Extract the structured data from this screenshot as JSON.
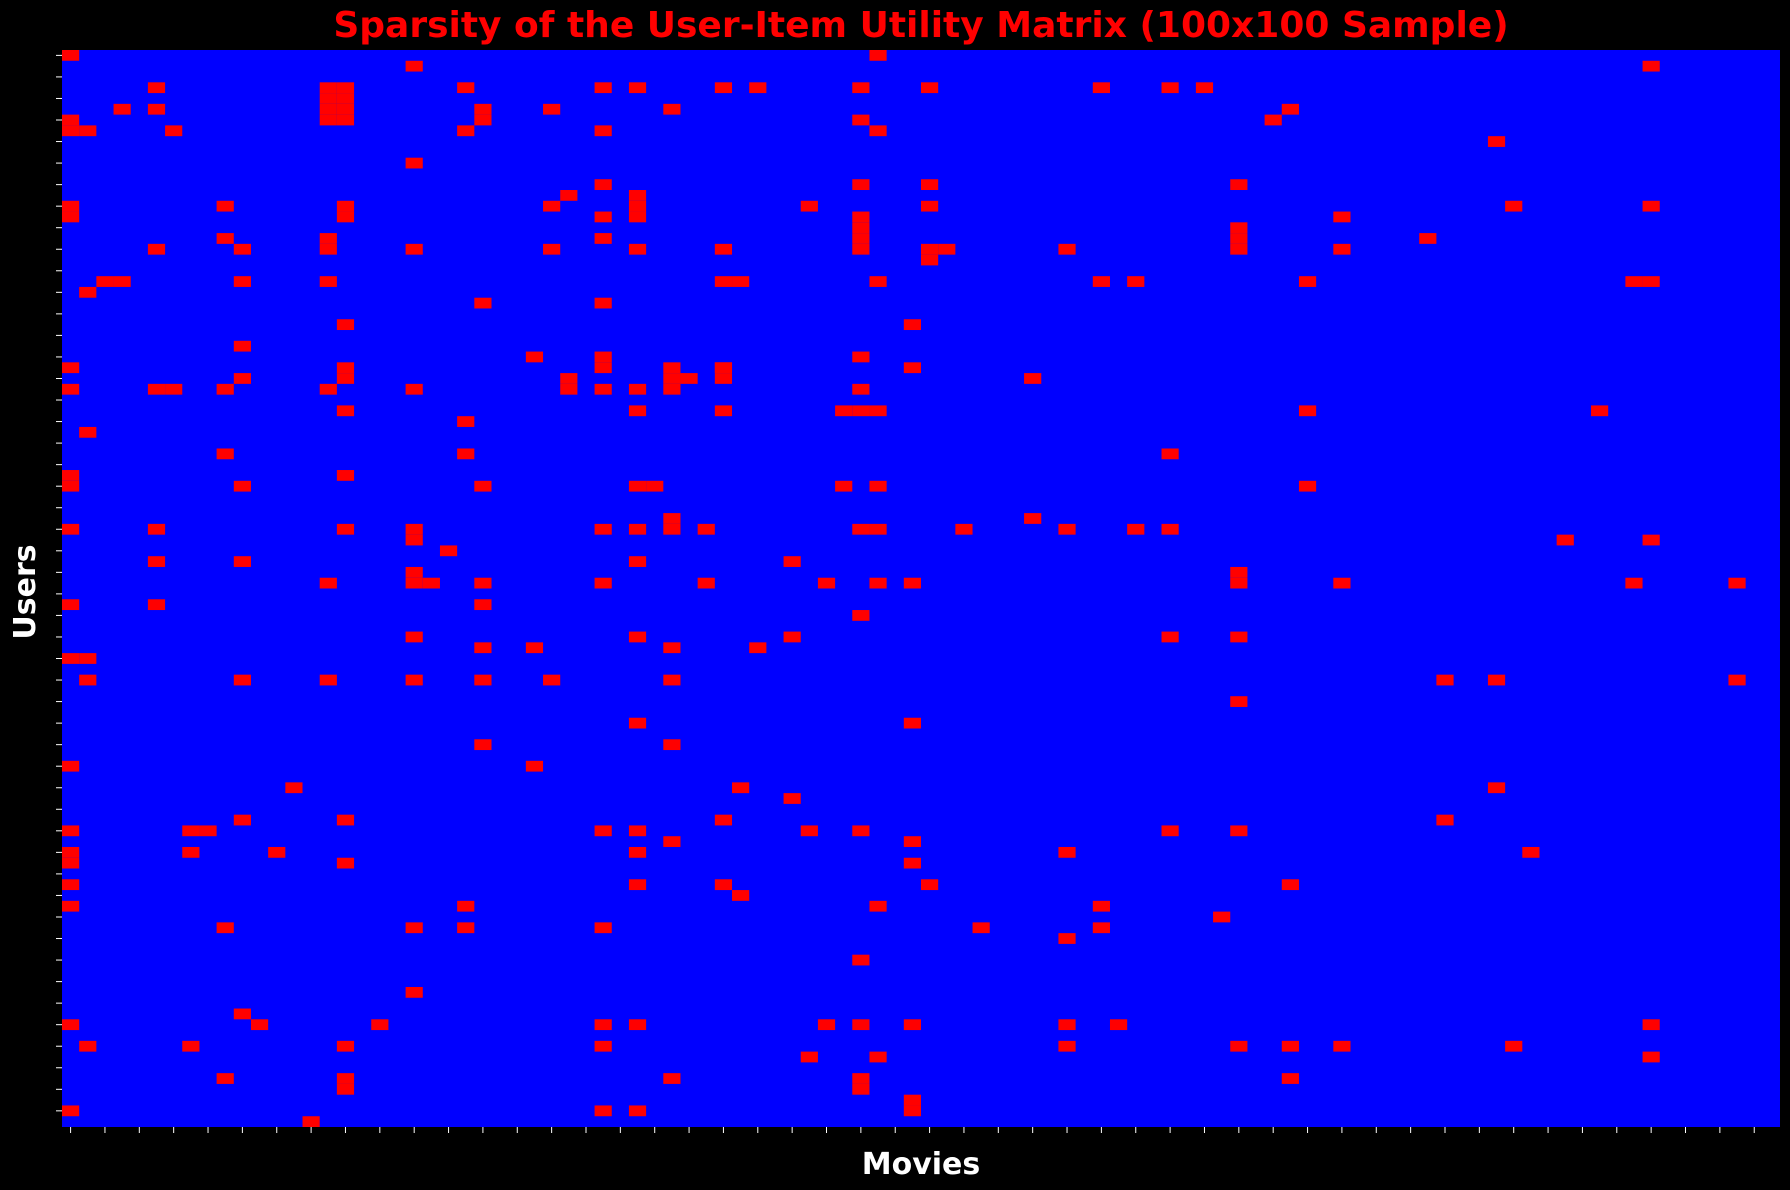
{
  "colors": {
    "background": "#000000",
    "empty_cell": "#0000ff",
    "rated_cell": "#ff0000",
    "title": "#ff0000",
    "axis_label": "#ffffff",
    "tick": "#ffffff"
  },
  "chart_data": {
    "type": "heatmap",
    "title": "Sparsity of the User-Item Utility Matrix (100x100 Sample)",
    "xlabel": "Movies",
    "ylabel": "Users",
    "n_rows": 100,
    "n_cols": 100,
    "colorbar": false,
    "tick_labels_shown": false,
    "value_encoding": "1 = rating present (red), 0 = no rating (blue)",
    "rated_cells_by_row": [
      [
        0,
        47
      ],
      [
        20,
        92
      ],
      [],
      [
        5,
        15,
        16,
        23,
        31,
        33,
        38,
        40,
        46,
        50,
        60,
        64,
        66
      ],
      [
        15,
        16
      ],
      [
        5,
        3,
        15,
        16,
        24,
        28,
        35,
        71
      ],
      [
        0,
        15,
        16,
        24,
        46,
        70
      ],
      [
        0,
        1,
        6,
        23,
        31,
        47
      ],
      [
        83
      ],
      [],
      [
        20
      ],
      [],
      [
        31,
        46,
        50,
        68
      ],
      [
        29,
        33
      ],
      [
        0,
        9,
        16,
        28,
        33,
        43,
        50,
        84,
        92
      ],
      [
        0,
        16,
        31,
        33,
        46,
        74
      ],
      [
        46,
        68
      ],
      [
        9,
        15,
        31,
        46,
        68,
        79
      ],
      [
        5,
        10,
        15,
        20,
        28,
        33,
        38,
        46,
        50,
        51,
        58,
        68,
        74
      ],
      [
        50
      ],
      [],
      [
        2,
        3,
        10,
        15,
        38,
        39,
        47,
        60,
        62,
        72,
        91,
        92
      ],
      [
        1
      ],
      [
        24,
        31
      ],
      [],
      [
        16,
        49
      ],
      [],
      [
        10
      ],
      [
        27,
        31,
        46
      ],
      [
        0,
        16,
        31,
        49,
        35,
        38,
        38
      ],
      [
        10,
        16,
        29,
        36,
        35,
        38,
        56
      ],
      [
        0,
        5,
        6,
        9,
        15,
        20,
        29,
        31,
        33,
        35,
        46
      ],
      [],
      [
        16,
        33,
        38,
        45,
        46,
        47,
        72,
        89
      ],
      [
        23
      ],
      [
        1
      ],
      [],
      [
        9,
        23,
        64
      ],
      [],
      [
        0,
        16
      ],
      [
        0,
        10,
        24,
        33,
        34,
        45,
        47,
        72
      ],
      [],
      [],
      [
        35,
        56
      ],
      [
        0,
        5,
        16,
        20,
        31,
        35,
        33,
        46,
        47,
        52,
        58,
        62,
        64,
        37
      ],
      [
        20,
        87,
        92
      ],
      [
        22
      ],
      [
        5,
        10,
        33,
        42
      ],
      [
        20,
        68
      ],
      [
        15,
        20,
        21,
        24,
        31,
        37,
        44,
        47,
        49,
        68,
        74,
        91,
        97
      ],
      [],
      [
        0,
        5,
        24
      ],
      [
        46
      ],
      [],
      [
        20,
        33,
        42,
        64,
        68
      ],
      [
        24,
        27,
        35,
        40
      ],
      [
        0,
        1
      ],
      [],
      [
        1,
        10,
        15,
        20,
        24,
        28,
        35,
        80,
        83,
        97
      ],
      [],
      [
        68
      ],
      [],
      [
        33,
        49
      ],
      [],
      [
        24,
        35
      ],
      [],
      [
        0,
        27
      ],
      [],
      [
        13,
        39,
        83
      ],
      [
        42
      ],
      [],
      [
        10,
        16,
        38,
        80
      ],
      [
        0,
        7,
        8,
        31,
        33,
        43,
        46,
        64,
        68
      ],
      [
        35,
        49
      ],
      [
        0,
        7,
        12,
        33,
        58,
        85
      ],
      [
        0,
        16,
        49
      ],
      [],
      [
        0,
        33,
        38,
        50,
        71
      ],
      [
        39
      ],
      [
        0,
        23,
        47,
        60
      ],
      [
        67
      ],
      [
        9,
        20,
        23,
        31,
        53,
        60
      ],
      [
        58
      ],
      [],
      [
        46
      ],
      [],
      [],
      [
        20
      ],
      [],
      [
        10
      ],
      [
        0,
        11,
        18,
        31,
        33,
        44,
        46,
        49,
        58,
        61,
        92
      ],
      [],
      [
        1,
        7,
        16,
        31,
        58,
        68,
        71,
        74,
        84
      ],
      [
        43,
        47,
        92
      ],
      [],
      [
        9,
        16,
        35,
        46,
        71
      ],
      [
        16,
        46
      ],
      [
        49
      ],
      [
        0,
        31,
        33,
        49
      ],
      [
        14
      ]
    ]
  }
}
